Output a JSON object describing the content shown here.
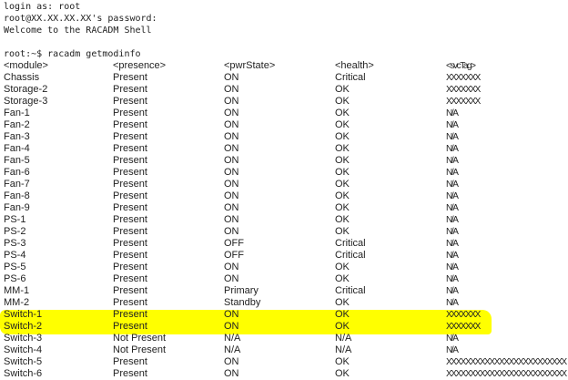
{
  "session": {
    "login_line": "login as: root",
    "password_line": "root@XX.XX.XX.XX's password:",
    "welcome_line": "Welcome to the RACADM Shell",
    "command_line": "root:~$ racadm getmodinfo"
  },
  "highlight_color": "#ffff00",
  "table": {
    "headers": [
      "<module>",
      "<presence>",
      "<pwrState>",
      "<health>",
      "<svcTag>"
    ],
    "rows": [
      [
        "Chassis",
        "Present",
        "ON",
        "Critical",
        "XXXXXXX"
      ],
      [
        "Storage-2",
        "Present",
        "ON",
        "OK",
        "XXXXXXX"
      ],
      [
        "Storage-3",
        "Present",
        "ON",
        "OK",
        "XXXXXXX"
      ],
      [
        "Fan-1",
        "Present",
        "ON",
        "OK",
        "N/A"
      ],
      [
        "Fan-2",
        "Present",
        "ON",
        "OK",
        "N/A"
      ],
      [
        "Fan-3",
        "Present",
        "ON",
        "OK",
        "N/A"
      ],
      [
        "Fan-4",
        "Present",
        "ON",
        "OK",
        "N/A"
      ],
      [
        "Fan-5",
        "Present",
        "ON",
        "OK",
        "N/A"
      ],
      [
        "Fan-6",
        "Present",
        "ON",
        "OK",
        "N/A"
      ],
      [
        "Fan-7",
        "Present",
        "ON",
        "OK",
        "N/A"
      ],
      [
        "Fan-8",
        "Present",
        "ON",
        "OK",
        "N/A"
      ],
      [
        "Fan-9",
        "Present",
        "ON",
        "OK",
        "N/A"
      ],
      [
        "PS-1",
        "Present",
        "ON",
        "OK",
        "N/A"
      ],
      [
        "PS-2",
        "Present",
        "ON",
        "OK",
        "N/A"
      ],
      [
        "PS-3",
        "Present",
        "OFF",
        "Critical",
        "N/A"
      ],
      [
        "PS-4",
        "Present",
        "OFF",
        "Critical",
        "N/A"
      ],
      [
        "PS-5",
        "Present",
        "ON",
        "OK",
        "N/A"
      ],
      [
        "PS-6",
        "Present",
        "ON",
        "OK",
        "N/A"
      ],
      [
        "MM-1",
        "Present",
        "Primary",
        "Critical",
        "N/A"
      ],
      [
        "MM-2",
        "Present",
        "Standby",
        "OK",
        "N/A"
      ],
      [
        "Switch-1",
        "Present",
        "ON",
        "OK",
        "XXXXXXX"
      ],
      [
        "Switch-2",
        "Present",
        "ON",
        "OK",
        "XXXXXXX"
      ],
      [
        "Switch-3",
        "Not Present",
        "N/A",
        "N/A",
        "N/A"
      ],
      [
        "Switch-4",
        "Not Present",
        "N/A",
        "N/A",
        "N/A"
      ],
      [
        "Switch-5",
        "Present",
        "ON",
        "OK",
        "XXXXXXXXXXXXXXXXXXXXXXXXX"
      ],
      [
        "Switch-6",
        "Present",
        "ON",
        "OK",
        "XXXXXXXXXXXXXXXXXXXXXXXXX"
      ]
    ],
    "highlighted_rows": [
      "Switch-1",
      "Switch-2"
    ]
  }
}
